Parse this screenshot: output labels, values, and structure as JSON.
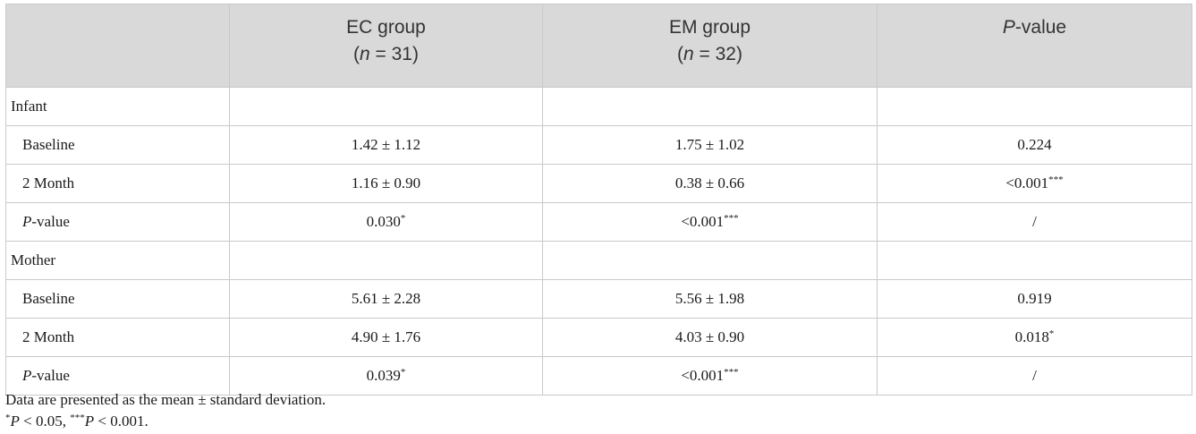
{
  "header": {
    "col0": "",
    "ec_title": "EC group",
    "ec_n_open": "(",
    "ec_n_var": "n",
    "ec_n_rest": " = 31)",
    "em_title": "EM group",
    "em_n_open": "(",
    "em_n_var": "n",
    "em_n_rest": " = 32)",
    "p_var": "P",
    "p_rest": "-value"
  },
  "rows": {
    "infant": {
      "label": "Infant"
    },
    "infant_baseline": {
      "label": "Baseline",
      "ec": "1.42 ± 1.12",
      "em": "1.75 ± 1.02",
      "p": "0.224"
    },
    "infant_2m": {
      "label": "2 Month",
      "ec": "1.16 ± 0.90",
      "em": "0.38 ± 0.66",
      "p": "<0.001",
      "p_sup": "***"
    },
    "infant_p": {
      "label_var": "P",
      "label_rest": "-value",
      "ec": "0.030",
      "ec_sup": "*",
      "em": "<0.001",
      "em_sup": "***",
      "p": "/"
    },
    "mother": {
      "label": "Mother"
    },
    "mother_baseline": {
      "label": "Baseline",
      "ec": "5.61 ± 2.28",
      "em": "5.56 ± 1.98",
      "p": "0.919"
    },
    "mother_2m": {
      "label": "2 Month",
      "ec": "4.90 ± 1.76",
      "em": "4.03 ± 0.90",
      "p": "0.018",
      "p_sup": "*"
    },
    "mother_p": {
      "label_var": "P",
      "label_rest": "-value",
      "ec": "0.039",
      "ec_sup": "*",
      "em": "<0.001",
      "em_sup": "***",
      "p": "/"
    }
  },
  "notes": {
    "line1": "Data are presented as the mean ± standard deviation.",
    "line2_sup1": "*",
    "line2_p1": "P",
    "line2_t1": " < 0.05, ",
    "line2_sup2": "***",
    "line2_p2": "P",
    "line2_t2": " < 0.001."
  }
}
